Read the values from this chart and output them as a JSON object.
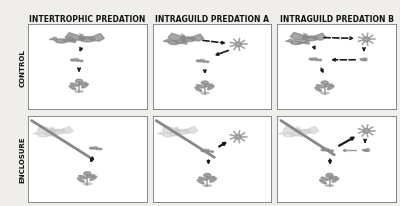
{
  "col_headers": [
    "INTERTROPHIC PREDATION",
    "INTRAGUILD PREDATION A",
    "INTRAGUILD PREDATION B"
  ],
  "row_labels": [
    "CONTROL",
    "ENCLOSURE"
  ],
  "bg_color": "#f0eeea",
  "cell_bg": "#ffffff",
  "grid_color": "#777777",
  "dark_arrow": "#1a1a1a",
  "light_arrow": "#999999",
  "silhouette_color": "#888888",
  "faded_color": "#cccccc",
  "header_fontsize": 5.5,
  "label_fontsize": 5.0,
  "excl_line_color": "#999999"
}
